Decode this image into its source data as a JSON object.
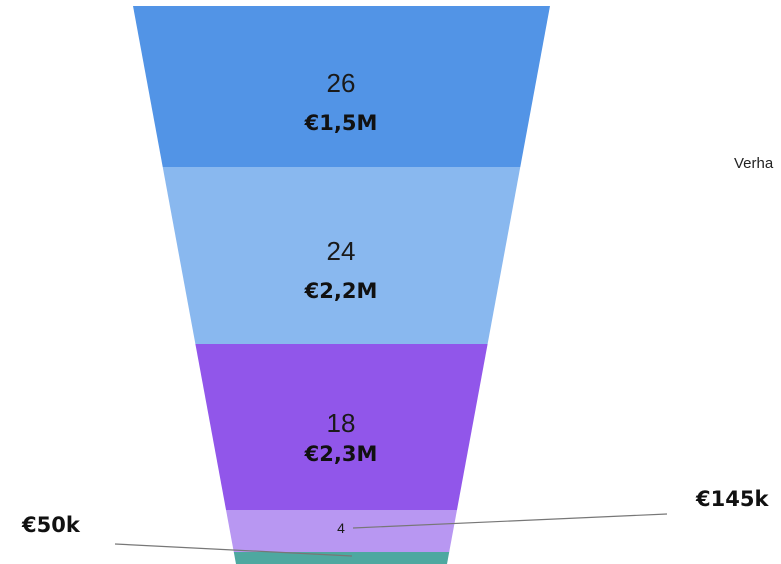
{
  "chart_data": {
    "type": "funnel",
    "stages": [
      {
        "count": "26",
        "value": "€1,5M",
        "color": "#5294e6"
      },
      {
        "count": "24",
        "value": "€2,2M",
        "color": "#89b8ef"
      },
      {
        "count": "18",
        "value": "€2,3M",
        "color": "#9156ea"
      },
      {
        "count": "4",
        "value": "€145k",
        "color": "#b897f2"
      },
      {
        "count": "",
        "value": "€50k",
        "color": "#4ea8a0"
      }
    ],
    "side_label": "Verha"
  }
}
